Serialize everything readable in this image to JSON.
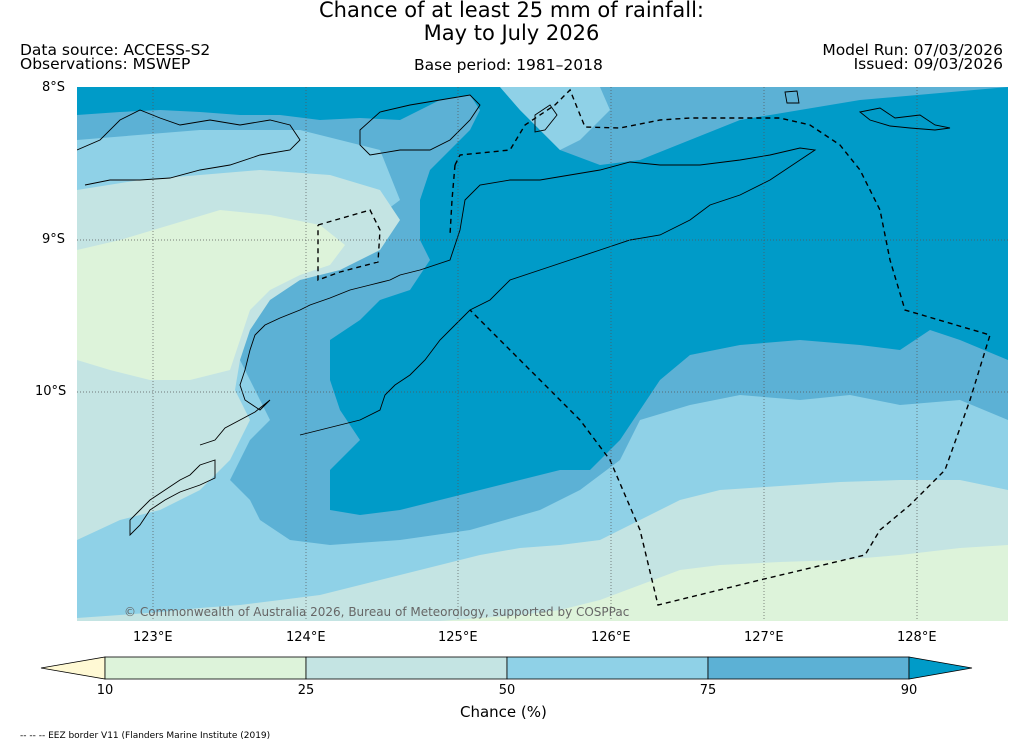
{
  "title": {
    "line1": "Chance of at least 25 mm of rainfall:",
    "line2": "May to July 2026"
  },
  "header": {
    "data_source": "Data source: ACCESS-S2",
    "observations": "Observations: MSWEP",
    "base_period": "Base period: 1981–2018",
    "model_run": "Model Run: 07/03/2026",
    "issued": "Issued: 09/03/2026"
  },
  "map": {
    "lat_labels": [
      "8°S",
      "9°S",
      "10°S"
    ],
    "lon_labels": [
      "123°E",
      "124°E",
      "125°E",
      "126°E",
      "127°E",
      "128°E"
    ],
    "copyright": "© Commonwealth of Australia 2026, Bureau of Meteorology, supported by COSPPac"
  },
  "colorbar": {
    "ticks": [
      "10",
      "25",
      "50",
      "75",
      "90"
    ],
    "label": "Chance (%)",
    "colors": {
      "below_10": "#fff9d4",
      "10_25": "#ddf3da",
      "25_50": "#c4e4e3",
      "50_75": "#8fd1e7",
      "75_90": "#5cb1d5",
      "above_90": "#009bc8"
    }
  },
  "footnote": "-- -- -- EEZ border V11 (Flanders Marine Institute (2019)"
}
